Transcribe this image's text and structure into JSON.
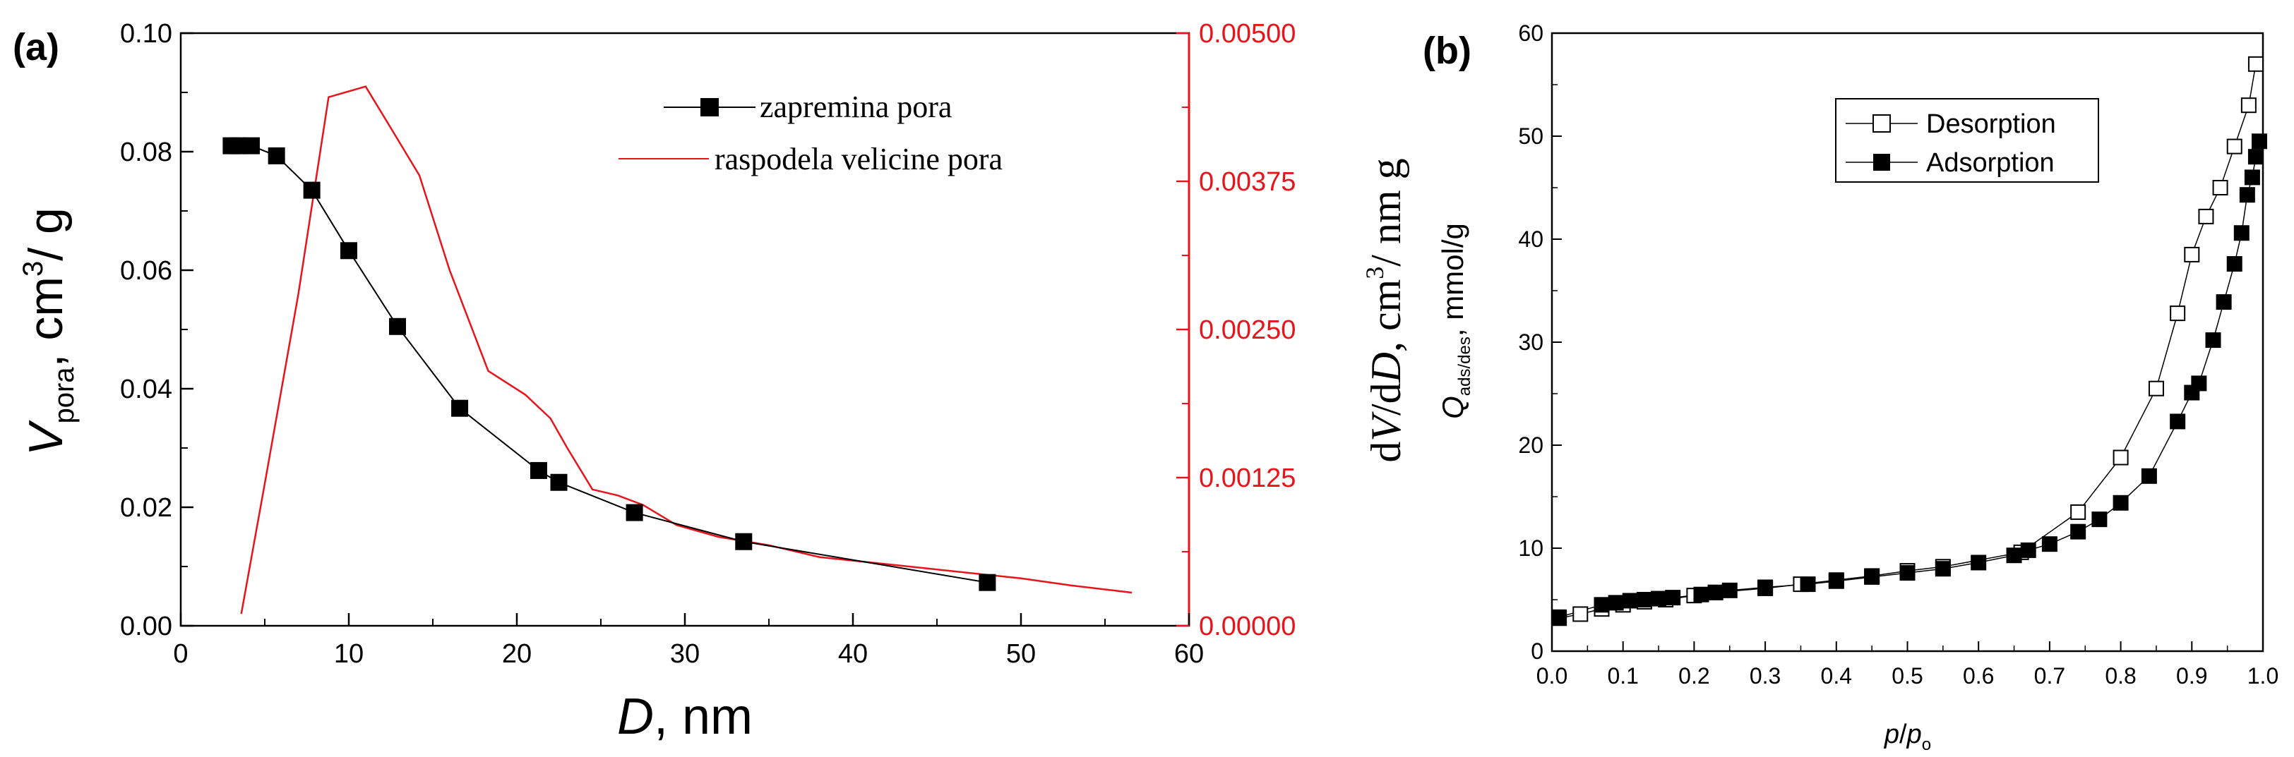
{
  "chart_data": [
    {
      "panel_label": "(a)",
      "type": "line",
      "xlabel_symbol": "D",
      "xlabel_unit": ", nm",
      "xlim": [
        0,
        60
      ],
      "x_ticks": [
        "0",
        "10",
        "20",
        "30",
        "40",
        "50",
        "60"
      ],
      "ylabel_left": {
        "symbol": "V",
        "subscript": "pora",
        "unit_prefix": ", cm",
        "sup": "3",
        "unit_suffix": "/ g"
      },
      "ylim_left": [
        0,
        0.1
      ],
      "y_ticks_left": [
        "0.00",
        "0.02",
        "0.04",
        "0.06",
        "0.08",
        "0.10"
      ],
      "ylabel_right": {
        "prefix": "d",
        "v": "V",
        "slash_d": "/d",
        "d": "D",
        "unit": ", cm",
        "sup": "3",
        "suffix": "/ nm g"
      },
      "ylim_right": [
        0,
        0.005
      ],
      "y_ticks_right": [
        "0.00000",
        "0.00125",
        "0.00250",
        "0.00375",
        "0.00500"
      ],
      "right_axis_color": "#e8141c",
      "series": [
        {
          "name": "zapremina pora",
          "axis": "left",
          "color": "#000000",
          "marker": "square-filled",
          "x": [
            3.0,
            3.4,
            4.2,
            5.7,
            7.8,
            10.0,
            12.9,
            16.6,
            21.3,
            22.5,
            27.0,
            33.5,
            48.0
          ],
          "y": [
            0.081,
            0.081,
            0.081,
            0.0793,
            0.0735,
            0.0633,
            0.0505,
            0.0367,
            0.0262,
            0.0242,
            0.0191,
            0.0142,
            0.0073
          ]
        },
        {
          "name": "raspodela velicine pora",
          "axis": "right",
          "color": "#e8141c",
          "marker": "none",
          "x": [
            3.6,
            5.0,
            7.0,
            8.8,
            11.0,
            12.5,
            14.2,
            16.0,
            18.3,
            20.5,
            22.0,
            23.0,
            24.5,
            26.0,
            27.5,
            29.5,
            32.0,
            35.0,
            38.0,
            42.0,
            46.0,
            50.0,
            53.0,
            56.6
          ],
          "y": [
            0.0001,
            0.0012,
            0.0028,
            0.00446,
            0.00455,
            0.0042,
            0.0038,
            0.003,
            0.00215,
            0.00195,
            0.00175,
            0.0015,
            0.00115,
            0.0011,
            0.00102,
            0.00085,
            0.00075,
            0.00068,
            0.00058,
            0.00052,
            0.00046,
            0.0004,
            0.00034,
            0.00028
          ]
        }
      ]
    },
    {
      "panel_label": "(b)",
      "type": "scatter",
      "xlabel": {
        "p": "p",
        "slash": "/",
        "p2": "p",
        "sub": "o"
      },
      "xlim": [
        0,
        1
      ],
      "x_ticks": [
        "0.0",
        "0.1",
        "0.2",
        "0.3",
        "0.4",
        "0.5",
        "0.6",
        "0.7",
        "0.8",
        "0.9",
        "1.0"
      ],
      "ylabel": {
        "q": "Q",
        "sub": "ads/des",
        "unit": ", mmol/g"
      },
      "ylim": [
        0,
        60
      ],
      "y_ticks": [
        "0",
        "10",
        "20",
        "30",
        "40",
        "50",
        "60"
      ],
      "legend_position": "top-left",
      "series": [
        {
          "name": "Desorption",
          "marker": "square-open",
          "color": "#000000",
          "x": [
            0.01,
            0.04,
            0.07,
            0.1,
            0.13,
            0.16,
            0.2,
            0.23,
            0.3,
            0.35,
            0.4,
            0.45,
            0.5,
            0.55,
            0.66,
            0.74,
            0.8,
            0.85,
            0.88,
            0.9,
            0.92,
            0.94,
            0.96,
            0.98,
            0.99
          ],
          "y": [
            3.2,
            3.6,
            4.1,
            4.5,
            4.8,
            5.0,
            5.4,
            5.7,
            6.1,
            6.5,
            6.9,
            7.3,
            7.8,
            8.2,
            9.6,
            13.5,
            18.8,
            25.5,
            32.8,
            38.5,
            42.2,
            45.0,
            49.0,
            53.0,
            57.0
          ]
        },
        {
          "name": "Adsorption",
          "marker": "square-filled",
          "color": "#000000",
          "x": [
            0.01,
            0.07,
            0.09,
            0.11,
            0.13,
            0.15,
            0.17,
            0.21,
            0.23,
            0.25,
            0.3,
            0.36,
            0.4,
            0.45,
            0.5,
            0.55,
            0.6,
            0.65,
            0.67,
            0.7,
            0.74,
            0.77,
            0.8,
            0.84,
            0.88,
            0.9,
            0.91,
            0.93,
            0.945,
            0.96,
            0.97,
            0.978,
            0.985,
            0.99,
            0.995
          ],
          "y": [
            3.3,
            4.5,
            4.7,
            4.9,
            5.0,
            5.1,
            5.2,
            5.5,
            5.7,
            5.9,
            6.2,
            6.5,
            6.8,
            7.2,
            7.6,
            8.0,
            8.6,
            9.3,
            9.8,
            10.4,
            11.6,
            12.8,
            14.4,
            17.0,
            22.3,
            25.1,
            26.0,
            30.2,
            33.9,
            37.6,
            40.6,
            44.3,
            46.0,
            48.0,
            49.5
          ]
        }
      ]
    }
  ]
}
